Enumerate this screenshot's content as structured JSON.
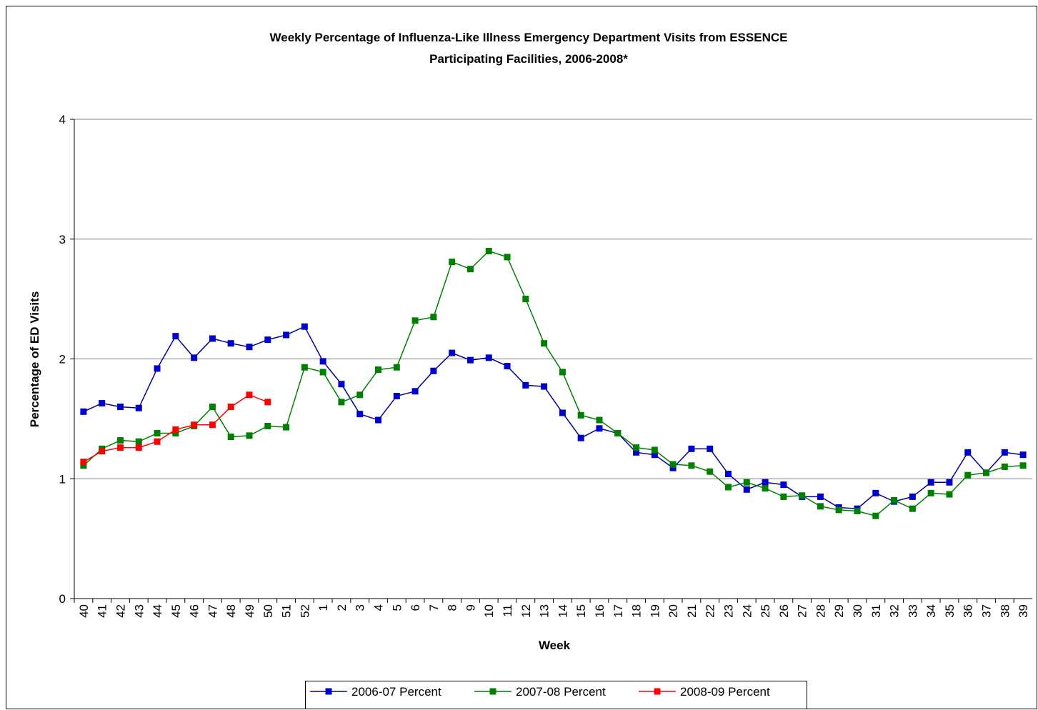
{
  "chart_data": {
    "type": "line",
    "title": [
      "Weekly Percentage of Influenza-Like Illness Emergency Department Visits from ESSENCE",
      "Participating Facilities, 2006-2008*"
    ],
    "x_label": "Week",
    "y_label": "Percentage of ED Visits",
    "categories": [
      "40",
      "41",
      "42",
      "43",
      "44",
      "45",
      "46",
      "47",
      "48",
      "49",
      "50",
      "51",
      "52",
      "1",
      "2",
      "3",
      "4",
      "5",
      "6",
      "7",
      "8",
      "9",
      "10",
      "11",
      "12",
      "13",
      "14",
      "15",
      "16",
      "17",
      "18",
      "19",
      "20",
      "21",
      "22",
      "23",
      "24",
      "25",
      "26",
      "27",
      "28",
      "29",
      "30",
      "31",
      "32",
      "33",
      "34",
      "35",
      "36",
      "37",
      "38",
      "39"
    ],
    "ylim": [
      0,
      4
    ],
    "yticks": [
      0,
      1,
      2,
      3,
      4
    ],
    "grid": true,
    "legend": "bottom",
    "series": [
      {
        "name": "2006-07 Percent",
        "color": "#000099",
        "marker_color": "#0000cc",
        "values": [
          1.56,
          1.63,
          1.6,
          1.59,
          1.92,
          2.19,
          2.01,
          2.17,
          2.13,
          2.1,
          2.16,
          2.2,
          2.27,
          1.98,
          1.79,
          1.54,
          1.49,
          1.69,
          1.73,
          1.9,
          2.05,
          1.99,
          2.01,
          1.94,
          1.78,
          1.77,
          1.55,
          1.34,
          1.42,
          1.38,
          1.22,
          1.2,
          1.09,
          1.25,
          1.25,
          1.04,
          0.91,
          0.97,
          0.95,
          0.85,
          0.85,
          0.76,
          0.75,
          0.88,
          0.81,
          0.85,
          0.97,
          0.97,
          1.22,
          1.05,
          1.22,
          1.2
        ]
      },
      {
        "name": "2007-08 Percent",
        "color": "#008000",
        "marker_color": "#008000",
        "values": [
          1.11,
          1.25,
          1.32,
          1.31,
          1.38,
          1.38,
          1.44,
          1.6,
          1.35,
          1.36,
          1.44,
          1.43,
          1.93,
          1.89,
          1.64,
          1.7,
          1.91,
          1.93,
          2.32,
          2.35,
          2.81,
          2.75,
          2.9,
          2.85,
          2.5,
          2.13,
          1.89,
          1.53,
          1.49,
          1.38,
          1.26,
          1.24,
          1.12,
          1.11,
          1.06,
          0.93,
          0.97,
          0.92,
          0.85,
          0.86,
          0.77,
          0.74,
          0.73,
          0.69,
          0.82,
          0.75,
          0.88,
          0.87,
          1.03,
          1.05,
          1.1,
          1.11
        ]
      },
      {
        "name": "2008-09 Percent",
        "color": "#ff0000",
        "marker_color": "#ff0000",
        "values": [
          1.14,
          1.23,
          1.26,
          1.26,
          1.31,
          1.41,
          1.45,
          1.45,
          1.6,
          1.7,
          1.64,
          null,
          null,
          null,
          null,
          null,
          null,
          null,
          null,
          null,
          null,
          null,
          null,
          null,
          null,
          null,
          null,
          null,
          null,
          null,
          null,
          null,
          null,
          null,
          null,
          null,
          null,
          null,
          null,
          null,
          null,
          null,
          null,
          null,
          null,
          null,
          null,
          null,
          null,
          null,
          null,
          null
        ]
      }
    ]
  }
}
